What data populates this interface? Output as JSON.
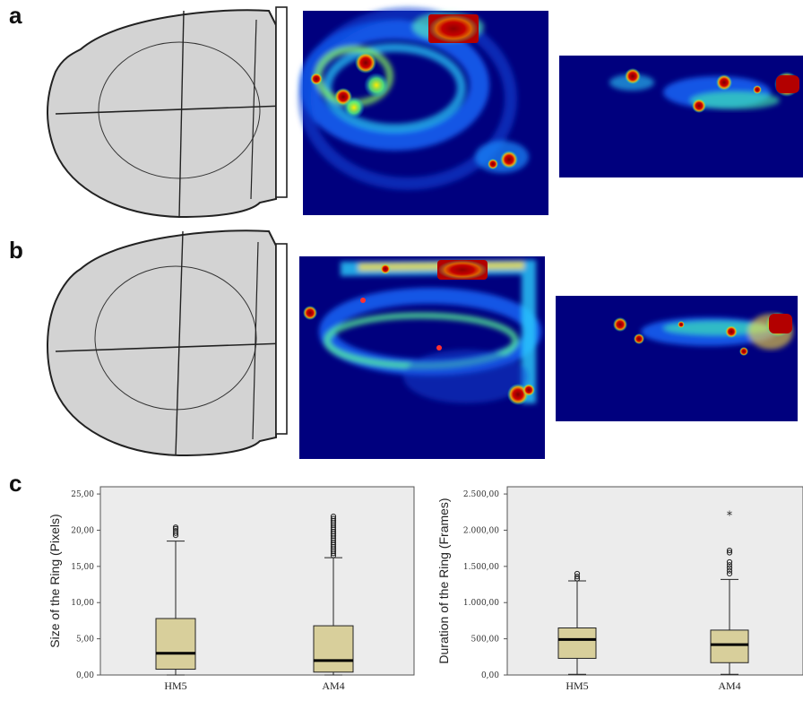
{
  "panels": {
    "a": "a",
    "b": "b",
    "c": "c"
  },
  "chart_data": [
    {
      "type": "box",
      "ylabel": "Size of the Ring (Pixels)",
      "categories": [
        "HM5",
        "AM4"
      ],
      "yticks": [
        "0,00",
        "5,00",
        "10,00",
        "15,00",
        "20,00",
        "25,00"
      ],
      "ylim": [
        0,
        26
      ],
      "boxes": [
        {
          "name": "HM5",
          "whisker_low": 0.0,
          "q1": 0.8,
          "median": 3.0,
          "q3": 7.8,
          "whisker_high": 18.5,
          "outliers": [
            19.3,
            19.6,
            19.9,
            20.2,
            20.4
          ]
        },
        {
          "name": "AM4",
          "whisker_low": 0.0,
          "q1": 0.4,
          "median": 2.0,
          "q3": 6.8,
          "whisker_high": 16.2,
          "outliers": [
            16.5,
            16.8,
            17.1,
            17.4,
            17.7,
            18.0,
            18.3,
            18.6,
            18.9,
            19.2,
            19.5,
            19.8,
            20.1,
            20.4,
            20.7,
            21.0,
            21.3,
            21.6,
            21.9
          ]
        }
      ]
    },
    {
      "type": "box",
      "ylabel": "Duration of the Ring (Frames)",
      "categories": [
        "HM5",
        "AM4"
      ],
      "yticks": [
        "0,00",
        "500,00",
        "1.000,00",
        "1.500,00",
        "2.000,00",
        "2.500,00"
      ],
      "ylim": [
        0,
        2600
      ],
      "boxes": [
        {
          "name": "HM5",
          "whisker_low": 10,
          "q1": 230,
          "median": 490,
          "q3": 650,
          "whisker_high": 1300,
          "outliers": [
            1330,
            1360,
            1400
          ]
        },
        {
          "name": "AM4",
          "whisker_low": 10,
          "q1": 170,
          "median": 420,
          "q3": 620,
          "whisker_high": 1320,
          "outliers": [
            1400,
            1440,
            1480,
            1520,
            1560,
            1690,
            1720
          ],
          "extremes": [
            2210
          ]
        }
      ]
    }
  ]
}
